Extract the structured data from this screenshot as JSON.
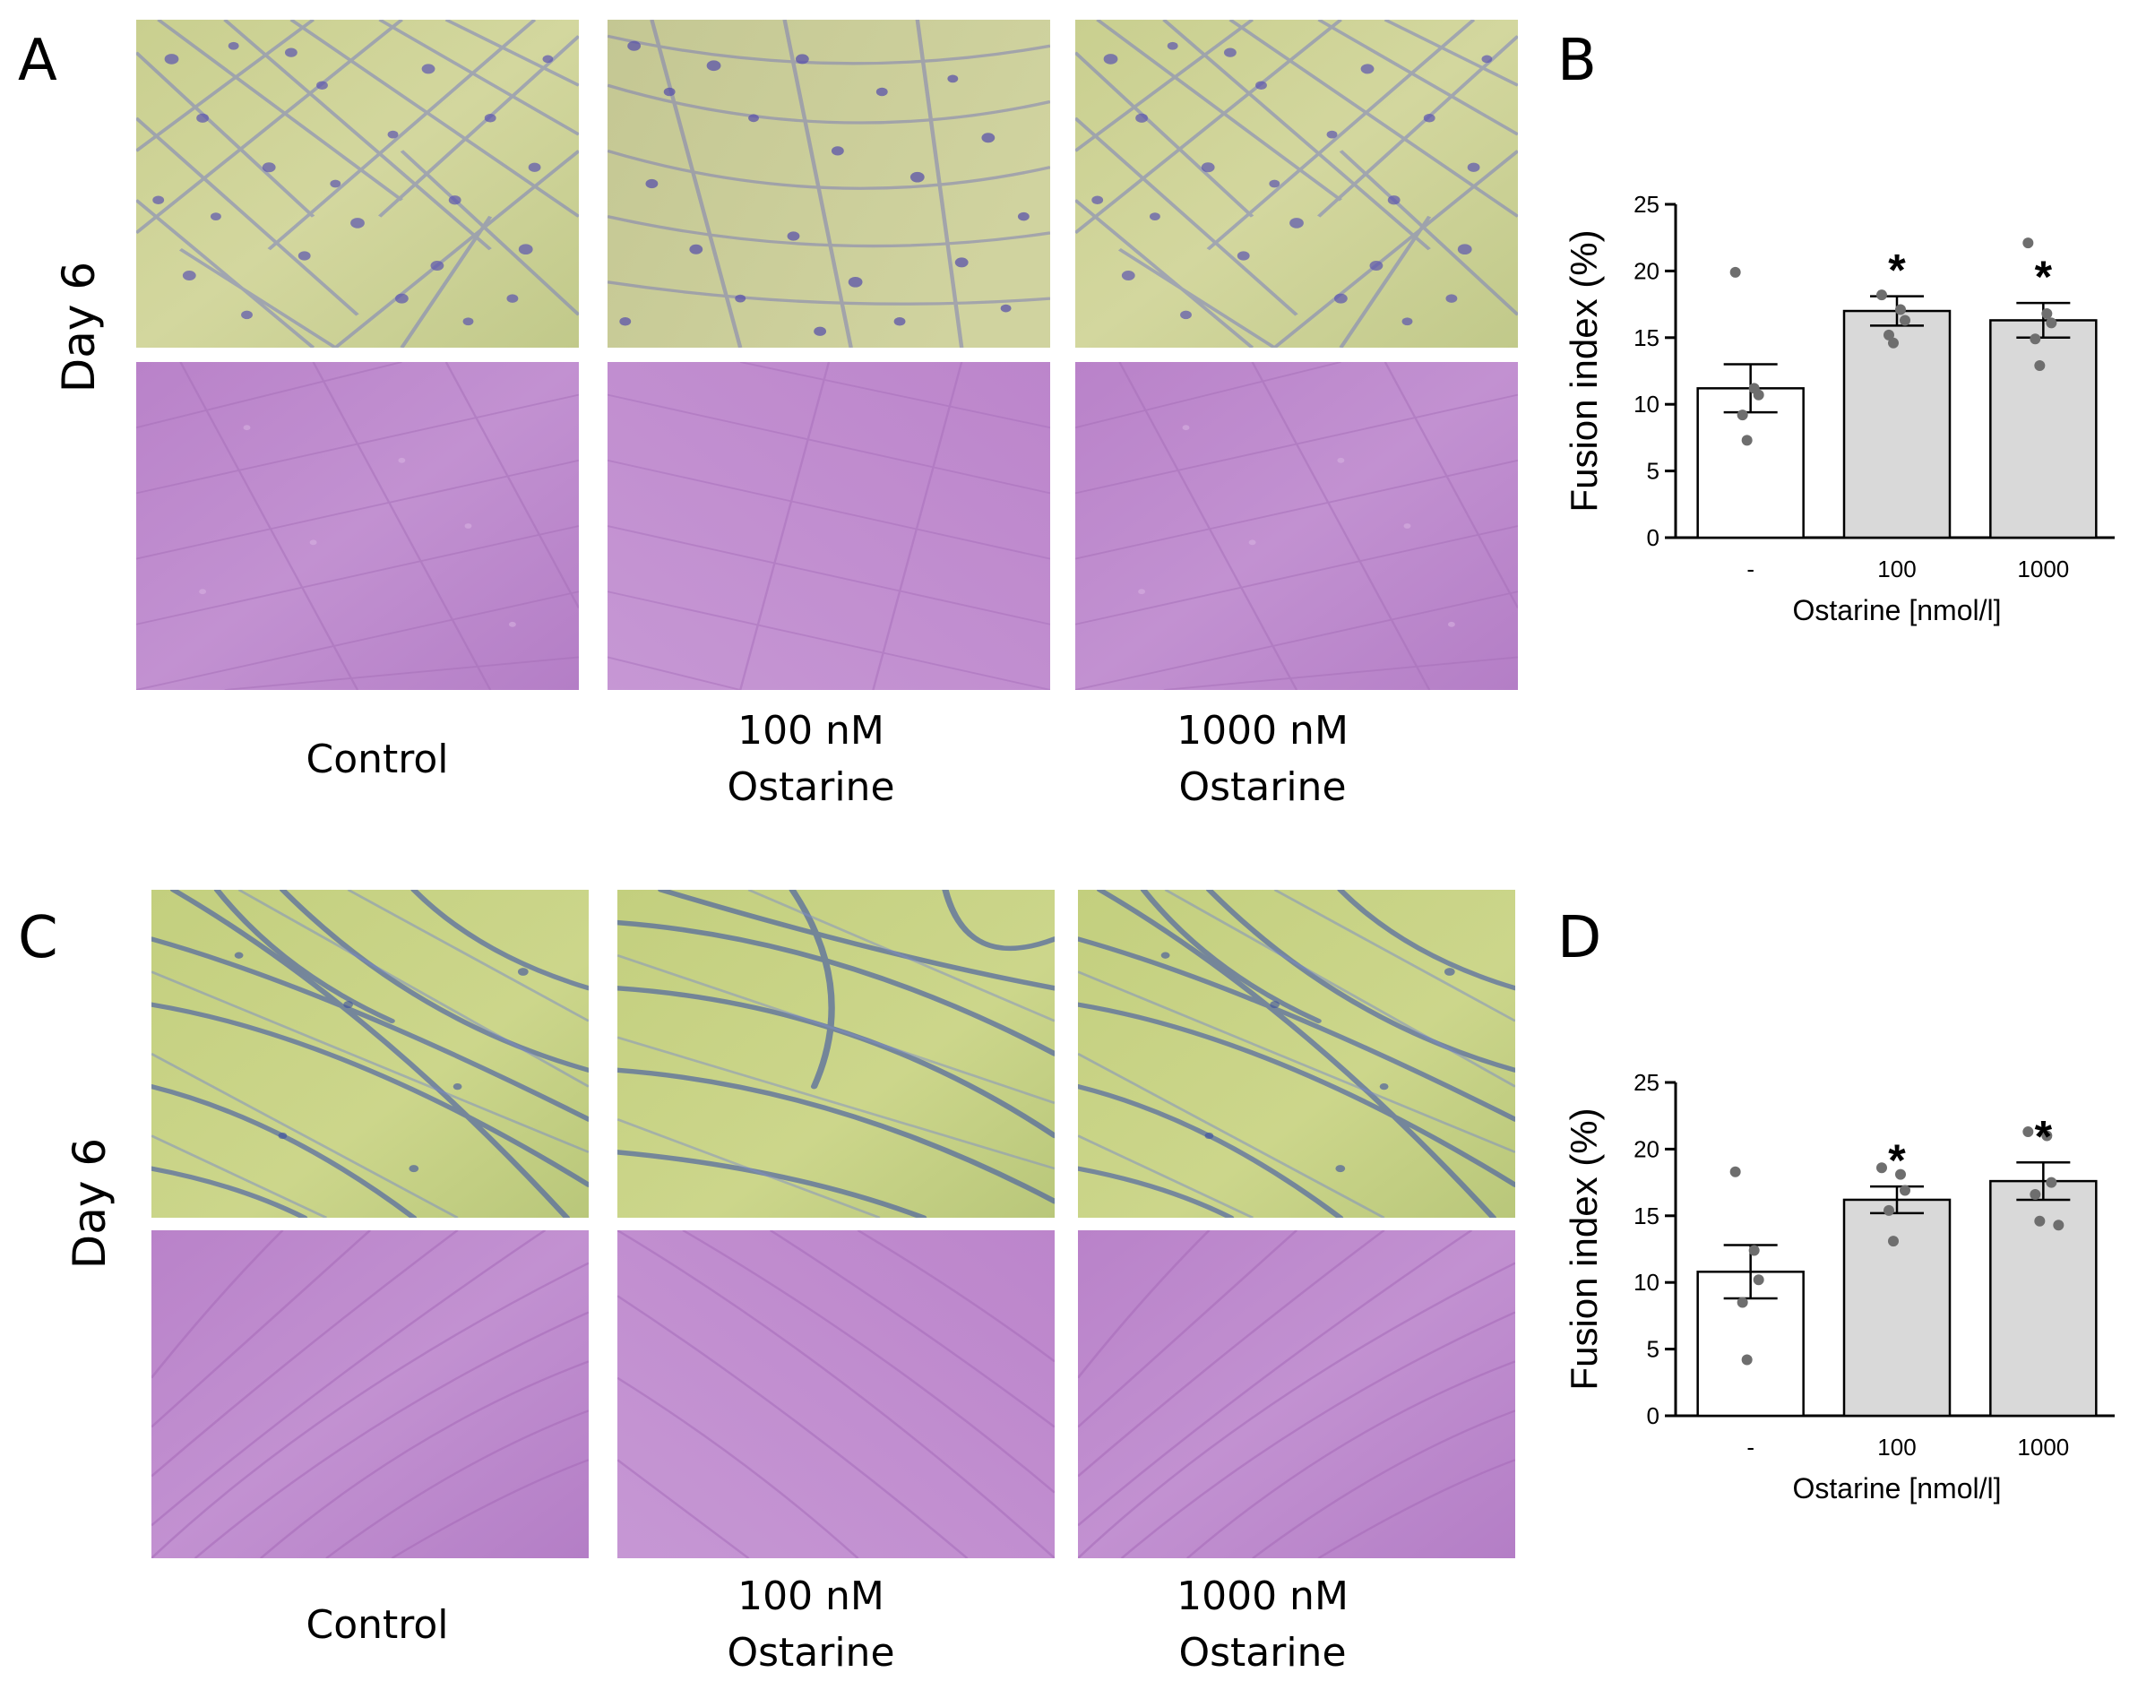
{
  "figure": {
    "panel_a": {
      "letter": "A",
      "row_label": "Day 6",
      "captions": [
        {
          "line1": "Control",
          "line2": ""
        },
        {
          "line1": "100 nM",
          "line2": "Ostarine"
        },
        {
          "line1": "1000 nM",
          "line2": "Ostarine"
        }
      ]
    },
    "panel_c": {
      "letter": "C",
      "row_label": "Day 6",
      "captions": [
        {
          "line1": "Control",
          "line2": ""
        },
        {
          "line1": "100 nM",
          "line2": "Ostarine"
        },
        {
          "line1": "1000 nM",
          "line2": "Ostarine"
        }
      ]
    },
    "panel_b": {
      "letter": "B"
    },
    "panel_d": {
      "letter": "D"
    }
  },
  "chart_data": [
    {
      "panel": "B",
      "type": "bar",
      "categories": [
        "-",
        "100",
        "1000"
      ],
      "values": [
        11.2,
        17.0,
        16.3
      ],
      "errors": [
        1.8,
        1.1,
        1.3
      ],
      "points": [
        [
          19.9,
          11.2,
          10.7,
          9.2,
          7.3
        ],
        [
          18.2,
          17.1,
          16.3,
          15.2,
          14.6
        ],
        [
          22.1,
          16.8,
          16.1,
          14.9,
          12.9
        ]
      ],
      "significance": [
        "",
        "*",
        "*"
      ],
      "bar_colors": [
        "#ffffff",
        "#d9d9d9",
        "#d9d9d9"
      ],
      "xlabel": "Ostarine [nmol/l]",
      "ylabel": "Fusion index (%)",
      "ylim": [
        0,
        25
      ],
      "yticks": [
        "0",
        "5",
        "10",
        "15",
        "20",
        "25"
      ]
    },
    {
      "panel": "D",
      "type": "bar",
      "categories": [
        "-",
        "100",
        "1000"
      ],
      "values": [
        10.8,
        16.2,
        17.6
      ],
      "errors": [
        2.0,
        1.0,
        1.4
      ],
      "points": [
        [
          18.3,
          12.4,
          10.2,
          8.5,
          4.2
        ],
        [
          18.6,
          18.1,
          16.9,
          15.4,
          13.1
        ],
        [
          21.3,
          21.0,
          17.5,
          16.6,
          14.6,
          14.3
        ]
      ],
      "significance": [
        "",
        "*",
        "*"
      ],
      "bar_colors": [
        "#ffffff",
        "#d9d9d9",
        "#d9d9d9"
      ],
      "xlabel": "Ostarine [nmol/l]",
      "ylabel": "Fusion index (%)",
      "ylim": [
        0,
        25
      ],
      "yticks": [
        "0",
        "5",
        "10",
        "15",
        "20",
        "25"
      ]
    }
  ]
}
